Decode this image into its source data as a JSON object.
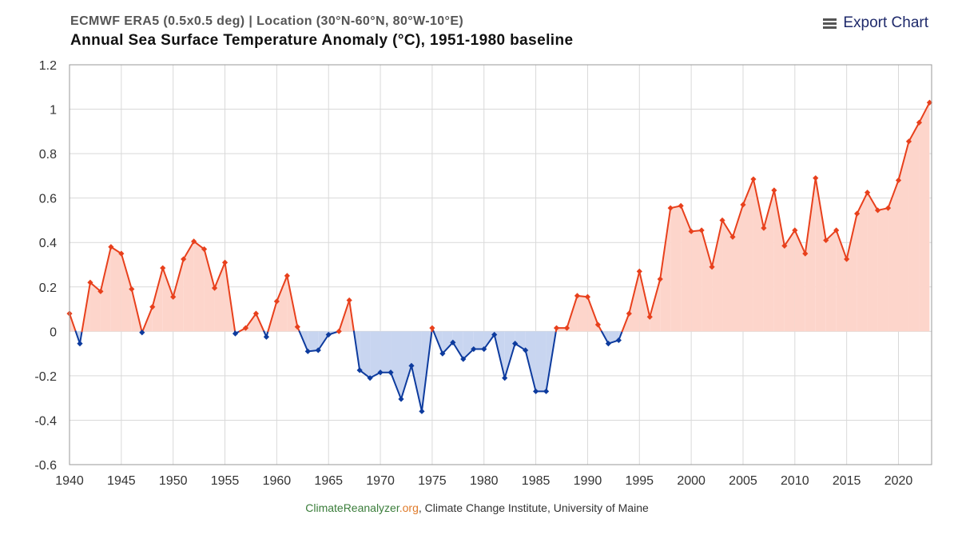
{
  "header": {
    "subtitle": "ECMWF ERA5 (0.5x0.5 deg) | Location (30°N-60°N, 80°W-10°E)",
    "title": "Annual Sea Surface Temperature Anomaly (°C), 1951-1980 baseline"
  },
  "export": {
    "label": "Export Chart",
    "icon": "hamburger-menu-icon"
  },
  "credit": {
    "site_main": "ClimateReanalyzer",
    "site_tld": ".org",
    "rest": ", Climate Change Institute, University of Maine"
  },
  "colors": {
    "positive_line": "#e8401c",
    "positive_fill": "#fdd5cb",
    "negative_line": "#0d3b9e",
    "negative_fill": "#c8d5f0",
    "grid": "#d9d9d9",
    "axis": "#999999"
  },
  "chart_data": {
    "type": "area",
    "title": "Annual Sea Surface Temperature Anomaly (°C), 1951-1980 baseline",
    "xlabel": "",
    "ylabel": "",
    "xlim": [
      1940,
      2023
    ],
    "ylim": [
      -0.6,
      1.2
    ],
    "xticks": [
      "1940",
      "1945",
      "1950",
      "1955",
      "1960",
      "1965",
      "1970",
      "1975",
      "1980",
      "1985",
      "1990",
      "1995",
      "2000",
      "2005",
      "2010",
      "2015",
      "2020"
    ],
    "yticks": [
      "1.2",
      "1",
      "0.8",
      "0.6",
      "0.4",
      "0.2",
      "0",
      "-0.2",
      "-0.4",
      "-0.6"
    ],
    "grid": true,
    "legend": "none",
    "series": [
      {
        "x": [
          1940,
          1941,
          1942,
          1943,
          1944,
          1945,
          1946,
          1947,
          1948,
          1949,
          1950,
          1951,
          1952,
          1953,
          1954,
          1955,
          1956,
          1957,
          1958,
          1959,
          1960,
          1961,
          1962,
          1963,
          1964,
          1965,
          1966,
          1967,
          1968,
          1969,
          1970,
          1971,
          1972,
          1973,
          1974,
          1975,
          1976,
          1977,
          1978,
          1979,
          1980,
          1981,
          1982,
          1983,
          1984,
          1985,
          1986,
          1987,
          1988,
          1989,
          1990,
          1991,
          1992,
          1993,
          1994,
          1995,
          1996,
          1997,
          1998,
          1999,
          2000,
          2001,
          2002,
          2003,
          2004,
          2005,
          2006,
          2007,
          2008,
          2009,
          2010,
          2011,
          2012,
          2013,
          2014,
          2015,
          2016,
          2017,
          2018,
          2019,
          2020,
          2021,
          2022,
          2023
        ],
        "values": [
          0.08,
          -0.055,
          0.22,
          0.18,
          0.38,
          0.35,
          0.19,
          -0.005,
          0.11,
          0.285,
          0.155,
          0.325,
          0.405,
          0.37,
          0.195,
          0.31,
          -0.01,
          0.015,
          0.08,
          -0.025,
          0.135,
          0.25,
          0.02,
          -0.09,
          -0.085,
          -0.015,
          0.0,
          0.14,
          -0.175,
          -0.21,
          -0.185,
          -0.185,
          -0.305,
          -0.155,
          -0.36,
          0.015,
          -0.1,
          -0.05,
          -0.125,
          -0.08,
          -0.08,
          -0.015,
          -0.21,
          -0.055,
          -0.085,
          -0.27,
          -0.27,
          0.015,
          0.015,
          0.16,
          0.155,
          0.03,
          -0.055,
          -0.04,
          0.08,
          0.27,
          0.065,
          0.235,
          0.555,
          0.565,
          0.45,
          0.455,
          0.29,
          0.5,
          0.425,
          0.57,
          0.685,
          0.465,
          0.635,
          0.385,
          0.455,
          0.35,
          0.69,
          0.41,
          0.455,
          0.325,
          0.53,
          0.625,
          0.545,
          0.555,
          0.68,
          0.855,
          0.94,
          1.03
        ]
      }
    ]
  }
}
